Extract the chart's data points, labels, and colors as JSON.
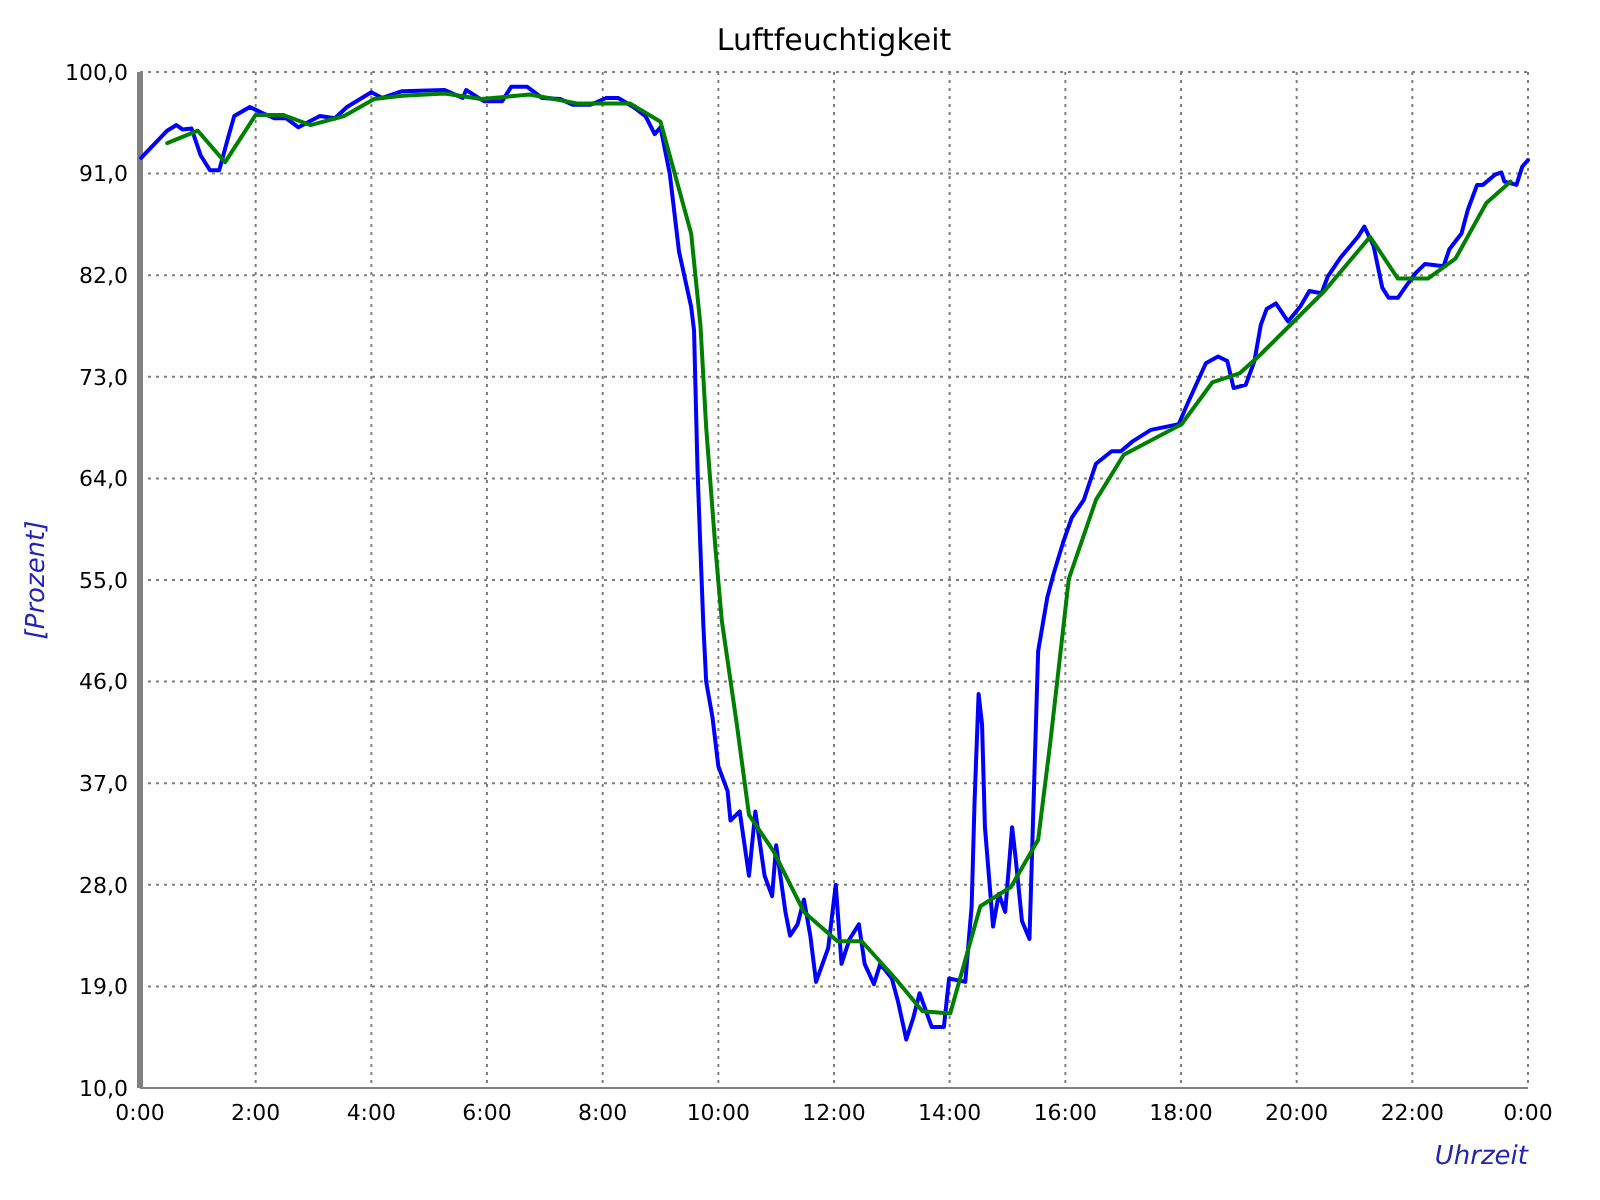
{
  "chart_data": {
    "type": "line",
    "title": "Luftfeuchtigkeit",
    "xlabel": "Uhrzeit",
    "ylabel": "[Prozent]",
    "xlim": [
      0,
      24
    ],
    "xticks": [
      {
        "value": 0,
        "label": "0:00"
      },
      {
        "value": 2,
        "label": "2:00"
      },
      {
        "value": 4,
        "label": "4:00"
      },
      {
        "value": 6,
        "label": "6:00"
      },
      {
        "value": 8,
        "label": "8:00"
      },
      {
        "value": 10,
        "label": "10:00"
      },
      {
        "value": 12,
        "label": "12:00"
      },
      {
        "value": 14,
        "label": "14:00"
      },
      {
        "value": 16,
        "label": "16:00"
      },
      {
        "value": 18,
        "label": "18:00"
      },
      {
        "value": 20,
        "label": "20:00"
      },
      {
        "value": 22,
        "label": "22:00"
      },
      {
        "value": 24,
        "label": "0:00"
      }
    ],
    "ylim": [
      10,
      100
    ],
    "yticks": [
      {
        "value": 10,
        "label": "10,0"
      },
      {
        "value": 19,
        "label": "19,0"
      },
      {
        "value": 28,
        "label": "28,0"
      },
      {
        "value": 37,
        "label": "37,0"
      },
      {
        "value": 46,
        "label": "46,0"
      },
      {
        "value": 55,
        "label": "55,0"
      },
      {
        "value": 64,
        "label": "64,0"
      },
      {
        "value": 73,
        "label": "73,0"
      },
      {
        "value": 82,
        "label": "82,0"
      },
      {
        "value": 91,
        "label": "91,0"
      },
      {
        "value": 100,
        "label": "100,0"
      }
    ],
    "grid": true,
    "marker": "none",
    "line_style": "solid",
    "series": [
      {
        "color": "#0000ff",
        "x": [
          0.02,
          0.47,
          0.63,
          0.74,
          0.89,
          1.05,
          1.21,
          1.37,
          1.53,
          1.63,
          1.9,
          2.1,
          2.32,
          2.53,
          2.74,
          3.11,
          3.37,
          3.58,
          4.0,
          4.19,
          4.53,
          5.27,
          5.58,
          5.64,
          5.95,
          6.26,
          6.42,
          6.69,
          6.95,
          7.27,
          7.48,
          7.79,
          8.06,
          8.27,
          8.53,
          8.74,
          8.9,
          9.0,
          9.16,
          9.32,
          9.53,
          9.58,
          9.64,
          9.69,
          9.74,
          9.79,
          9.9,
          10.0,
          10.16,
          10.21,
          10.37,
          10.53,
          10.64,
          10.8,
          10.93,
          11.0,
          11.16,
          11.24,
          11.37,
          11.48,
          11.59,
          11.69,
          11.9,
          12.03,
          12.13,
          12.27,
          12.43,
          12.53,
          12.69,
          12.8,
          13.0,
          13.11,
          13.25,
          13.37,
          13.48,
          13.69,
          13.9,
          13.99,
          14.27,
          14.38,
          14.43,
          14.5,
          14.56,
          14.61,
          14.75,
          14.85,
          14.96,
          15.08,
          15.14,
          15.25,
          15.38,
          15.46,
          15.53,
          15.69,
          15.8,
          15.96,
          16.11,
          16.32,
          16.53,
          16.8,
          16.96,
          17.17,
          17.48,
          17.96,
          18.12,
          18.43,
          18.64,
          18.8,
          18.91,
          19.12,
          19.27,
          19.38,
          19.48,
          19.64,
          19.85,
          20.06,
          20.22,
          20.43,
          20.54,
          20.75,
          21.06,
          21.17,
          21.33,
          21.48,
          21.59,
          21.75,
          21.9,
          22.06,
          22.22,
          22.54,
          22.64,
          22.85,
          22.96,
          23.12,
          23.22,
          23.43,
          23.54,
          23.59,
          23.8,
          23.9,
          24.0
        ],
        "values": [
          92.4,
          94.8,
          95.3,
          94.9,
          95.0,
          92.6,
          91.3,
          91.3,
          94.3,
          96.1,
          96.9,
          96.4,
          95.9,
          95.9,
          95.1,
          96.1,
          95.9,
          96.9,
          98.2,
          97.7,
          98.3,
          98.4,
          97.7,
          98.4,
          97.4,
          97.4,
          98.7,
          98.7,
          97.7,
          97.6,
          97.1,
          97.1,
          97.7,
          97.7,
          96.9,
          96.1,
          94.5,
          95.1,
          91.0,
          84.1,
          79.2,
          77.1,
          64.8,
          57.8,
          51.1,
          46.0,
          42.8,
          38.5,
          36.3,
          33.7,
          34.5,
          28.8,
          34.5,
          28.8,
          27.0,
          31.5,
          25.6,
          23.5,
          24.5,
          26.7,
          23.5,
          19.4,
          22.4,
          28.0,
          21.0,
          23.2,
          24.5,
          21.0,
          19.2,
          21.0,
          19.7,
          17.6,
          14.3,
          16.2,
          18.4,
          15.4,
          15.4,
          19.7,
          19.4,
          26.1,
          35.3,
          44.9,
          42.2,
          33.1,
          24.3,
          27.2,
          25.6,
          33.1,
          30.4,
          24.8,
          23.2,
          36.9,
          48.7,
          53.5,
          55.6,
          58.3,
          60.5,
          62.1,
          65.3,
          66.4,
          66.4,
          67.3,
          68.3,
          68.8,
          70.7,
          74.2,
          74.8,
          74.4,
          72.0,
          72.3,
          74.4,
          77.6,
          79.0,
          79.5,
          77.9,
          79.2,
          80.6,
          80.4,
          81.9,
          83.5,
          85.4,
          86.3,
          84.6,
          80.9,
          80.0,
          80.0,
          81.1,
          82.2,
          83.0,
          82.8,
          84.3,
          85.7,
          87.8,
          90.0,
          90.0,
          90.9,
          91.1,
          90.3,
          90.0,
          91.6,
          92.2
        ]
      },
      {
        "color": "#008000",
        "x": [
          0.47,
          1.0,
          1.47,
          2.0,
          2.47,
          2.95,
          3.53,
          4.05,
          4.53,
          5.27,
          5.9,
          6.74,
          7.58,
          8.48,
          9.0,
          9.53,
          9.69,
          9.79,
          9.95,
          10.06,
          10.32,
          10.53,
          10.95,
          11.48,
          12.06,
          12.48,
          13.06,
          13.53,
          14.01,
          14.53,
          15.06,
          15.53,
          15.74,
          16.06,
          16.53,
          17.01,
          18.01,
          18.54,
          19.01,
          19.38,
          20.48,
          21.27,
          21.75,
          22.27,
          22.75,
          23.28,
          23.7
        ],
        "values": [
          93.7,
          94.8,
          92.0,
          96.2,
          96.2,
          95.3,
          96.1,
          97.6,
          97.9,
          98.1,
          97.6,
          98.0,
          97.2,
          97.2,
          95.6,
          85.7,
          77.6,
          68.5,
          57.8,
          51.4,
          42.2,
          34.2,
          31.0,
          25.6,
          23.0,
          23.0,
          19.7,
          16.8,
          16.6,
          26.1,
          27.8,
          32.0,
          40.6,
          55.1,
          62.1,
          66.1,
          68.8,
          72.5,
          73.3,
          75.0,
          80.6,
          85.4,
          81.7,
          81.7,
          83.5,
          88.4,
          90.3
        ]
      }
    ]
  }
}
